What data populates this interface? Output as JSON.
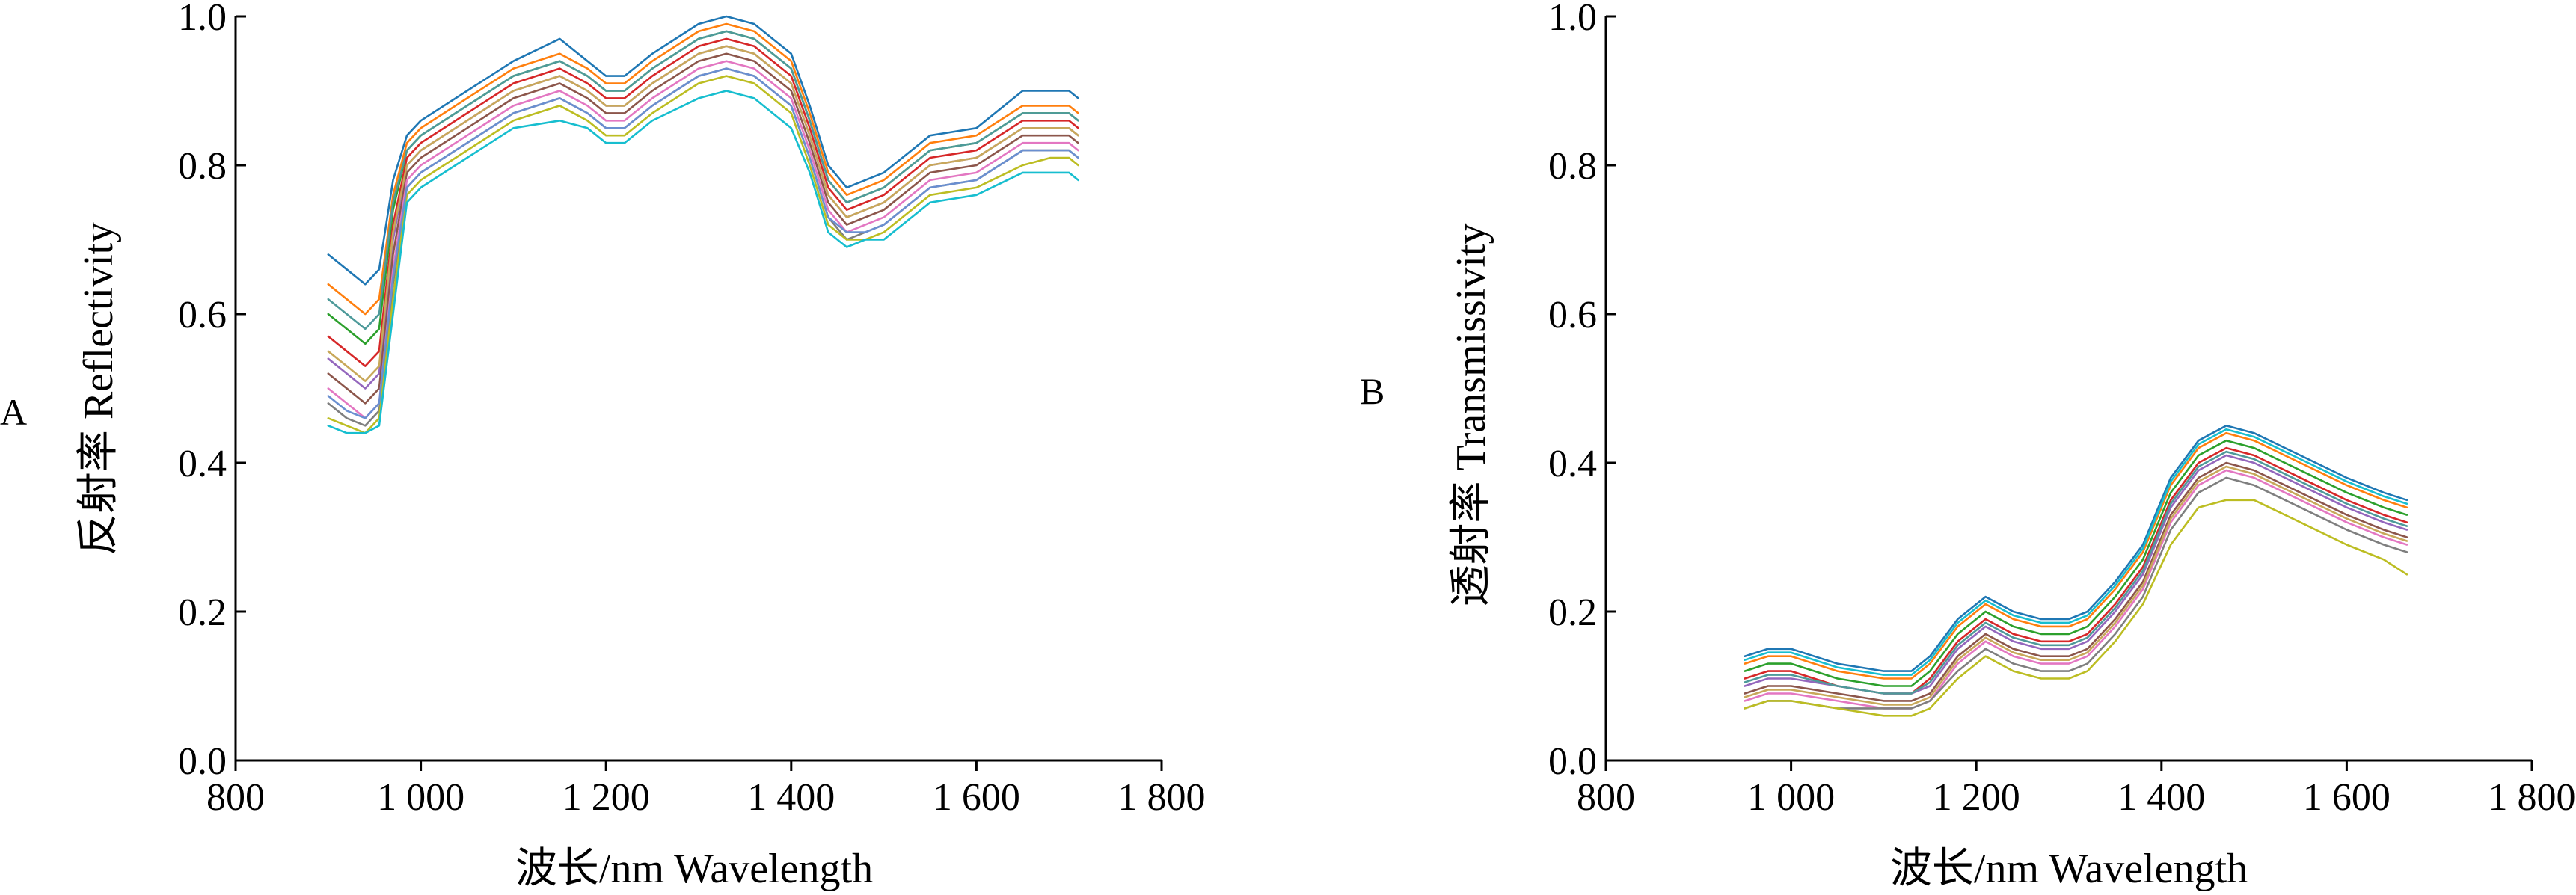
{
  "chart_data": [
    {
      "type": "line",
      "panel_label": "A",
      "xlabel": "波长/nm Wavelength",
      "ylabel": "反射率 Reflectivity",
      "xlim": [
        800,
        1800
      ],
      "ylim": [
        0.0,
        1.0
      ],
      "x_ticks": [
        800,
        1000,
        1200,
        1400,
        1600,
        1800
      ],
      "x_tick_labels": [
        "800",
        "1 000",
        "1 200",
        "1 400",
        "1 600",
        "1 800"
      ],
      "y_ticks": [
        0.0,
        0.2,
        0.4,
        0.6,
        0.8,
        1.0
      ],
      "y_tick_labels": [
        "0.0",
        "0.2",
        "0.4",
        "0.6",
        "0.8",
        "1.0"
      ],
      "grid": false,
      "legend": "none",
      "x": [
        900,
        920,
        940,
        955,
        970,
        985,
        1000,
        1050,
        1100,
        1150,
        1180,
        1200,
        1220,
        1250,
        1300,
        1330,
        1360,
        1380,
        1400,
        1420,
        1440,
        1460,
        1480,
        1500,
        1550,
        1600,
        1650,
        1680,
        1700,
        1710
      ],
      "series": [
        {
          "values": [
            0.68,
            0.66,
            0.64,
            0.66,
            0.78,
            0.84,
            0.86,
            0.9,
            0.94,
            0.97,
            0.94,
            0.92,
            0.92,
            0.95,
            0.99,
            1.0,
            0.99,
            0.97,
            0.95,
            0.88,
            0.8,
            0.77,
            0.78,
            0.79,
            0.84,
            0.85,
            0.9,
            0.9,
            0.9,
            0.89
          ]
        },
        {
          "values": [
            0.64,
            0.62,
            0.6,
            0.62,
            0.76,
            0.83,
            0.85,
            0.89,
            0.93,
            0.95,
            0.93,
            0.91,
            0.91,
            0.94,
            0.98,
            0.99,
            0.98,
            0.96,
            0.94,
            0.87,
            0.79,
            0.76,
            0.77,
            0.78,
            0.83,
            0.84,
            0.88,
            0.88,
            0.88,
            0.87
          ]
        },
        {
          "values": [
            0.6,
            0.58,
            0.56,
            0.58,
            0.74,
            0.82,
            0.84,
            0.88,
            0.92,
            0.94,
            0.92,
            0.9,
            0.9,
            0.93,
            0.97,
            0.98,
            0.97,
            0.95,
            0.93,
            0.86,
            0.78,
            0.75,
            0.76,
            0.77,
            0.82,
            0.83,
            0.87,
            0.87,
            0.87,
            0.86
          ]
        },
        {
          "values": [
            0.57,
            0.55,
            0.53,
            0.55,
            0.72,
            0.81,
            0.83,
            0.87,
            0.91,
            0.93,
            0.91,
            0.89,
            0.89,
            0.92,
            0.96,
            0.97,
            0.96,
            0.94,
            0.92,
            0.85,
            0.77,
            0.74,
            0.75,
            0.76,
            0.81,
            0.82,
            0.86,
            0.86,
            0.86,
            0.85
          ]
        },
        {
          "values": [
            0.54,
            0.52,
            0.5,
            0.52,
            0.7,
            0.8,
            0.82,
            0.86,
            0.9,
            0.92,
            0.9,
            0.88,
            0.88,
            0.91,
            0.95,
            0.96,
            0.95,
            0.93,
            0.91,
            0.84,
            0.76,
            0.73,
            0.74,
            0.75,
            0.8,
            0.81,
            0.85,
            0.85,
            0.85,
            0.84
          ]
        },
        {
          "values": [
            0.52,
            0.5,
            0.48,
            0.5,
            0.68,
            0.79,
            0.81,
            0.85,
            0.89,
            0.91,
            0.89,
            0.87,
            0.87,
            0.9,
            0.94,
            0.95,
            0.94,
            0.92,
            0.9,
            0.83,
            0.75,
            0.72,
            0.73,
            0.74,
            0.79,
            0.8,
            0.84,
            0.84,
            0.84,
            0.83
          ]
        },
        {
          "values": [
            0.5,
            0.48,
            0.46,
            0.48,
            0.66,
            0.78,
            0.8,
            0.84,
            0.88,
            0.9,
            0.88,
            0.86,
            0.86,
            0.89,
            0.93,
            0.94,
            0.93,
            0.91,
            0.89,
            0.82,
            0.74,
            0.71,
            0.72,
            0.73,
            0.78,
            0.79,
            0.83,
            0.83,
            0.83,
            0.82
          ]
        },
        {
          "values": [
            0.48,
            0.46,
            0.45,
            0.47,
            0.64,
            0.77,
            0.79,
            0.83,
            0.87,
            0.89,
            0.87,
            0.85,
            0.85,
            0.88,
            0.92,
            0.93,
            0.92,
            0.9,
            0.88,
            0.81,
            0.73,
            0.7,
            0.71,
            0.72,
            0.77,
            0.78,
            0.82,
            0.82,
            0.82,
            0.81
          ]
        },
        {
          "values": [
            0.46,
            0.45,
            0.44,
            0.46,
            0.62,
            0.76,
            0.78,
            0.82,
            0.86,
            0.88,
            0.86,
            0.84,
            0.84,
            0.87,
            0.91,
            0.92,
            0.91,
            0.89,
            0.87,
            0.8,
            0.72,
            0.7,
            0.7,
            0.71,
            0.76,
            0.77,
            0.8,
            0.81,
            0.81,
            0.8
          ]
        },
        {
          "values": [
            0.45,
            0.44,
            0.44,
            0.45,
            0.6,
            0.75,
            0.77,
            0.81,
            0.85,
            0.86,
            0.85,
            0.83,
            0.83,
            0.86,
            0.89,
            0.9,
            0.89,
            0.87,
            0.85,
            0.79,
            0.71,
            0.69,
            0.7,
            0.7,
            0.75,
            0.76,
            0.79,
            0.79,
            0.79,
            0.78
          ]
        },
        {
          "values": [
            0.62,
            0.6,
            0.58,
            0.6,
            0.75,
            0.82,
            0.84,
            0.88,
            0.92,
            0.94,
            0.92,
            0.9,
            0.9,
            0.93,
            0.97,
            0.98,
            0.97,
            0.95,
            0.93,
            0.86,
            0.78,
            0.75,
            0.76,
            0.77,
            0.82,
            0.83,
            0.87,
            0.87,
            0.87,
            0.86
          ]
        },
        {
          "values": [
            0.55,
            0.53,
            0.51,
            0.53,
            0.71,
            0.8,
            0.82,
            0.86,
            0.9,
            0.92,
            0.9,
            0.88,
            0.88,
            0.91,
            0.95,
            0.96,
            0.95,
            0.93,
            0.91,
            0.84,
            0.76,
            0.73,
            0.74,
            0.75,
            0.8,
            0.81,
            0.85,
            0.85,
            0.85,
            0.84
          ]
        },
        {
          "values": [
            0.49,
            0.47,
            0.46,
            0.48,
            0.65,
            0.77,
            0.79,
            0.83,
            0.87,
            0.89,
            0.87,
            0.85,
            0.85,
            0.88,
            0.92,
            0.93,
            0.92,
            0.9,
            0.88,
            0.81,
            0.73,
            0.71,
            0.71,
            0.72,
            0.77,
            0.78,
            0.82,
            0.82,
            0.82,
            0.81
          ]
        }
      ]
    },
    {
      "type": "line",
      "panel_label": "B",
      "xlabel": "波长/nm Wavelength",
      "ylabel": "透射率 Transmissivity",
      "xlim": [
        800,
        1800
      ],
      "ylim": [
        0.0,
        1.0
      ],
      "x_ticks": [
        800,
        1000,
        1200,
        1400,
        1600,
        1800
      ],
      "x_tick_labels": [
        "800",
        "1 000",
        "1 200",
        "1 400",
        "1 600",
        "1 800"
      ],
      "y_ticks": [
        0.0,
        0.2,
        0.4,
        0.6,
        0.8,
        1.0
      ],
      "y_tick_labels": [
        "0.0",
        "0.2",
        "0.4",
        "0.6",
        "0.8",
        "1.0"
      ],
      "grid": false,
      "legend": "none",
      "x": [
        950,
        975,
        1000,
        1050,
        1100,
        1130,
        1150,
        1180,
        1210,
        1240,
        1270,
        1300,
        1320,
        1350,
        1380,
        1410,
        1440,
        1470,
        1500,
        1550,
        1600,
        1640,
        1665
      ],
      "series": [
        {
          "values": [
            0.14,
            0.15,
            0.15,
            0.13,
            0.12,
            0.12,
            0.14,
            0.19,
            0.22,
            0.2,
            0.19,
            0.19,
            0.2,
            0.24,
            0.29,
            0.38,
            0.43,
            0.45,
            0.44,
            0.41,
            0.38,
            0.36,
            0.35
          ]
        },
        {
          "values": [
            0.13,
            0.14,
            0.14,
            0.12,
            0.11,
            0.11,
            0.13,
            0.18,
            0.21,
            0.19,
            0.18,
            0.18,
            0.19,
            0.23,
            0.28,
            0.37,
            0.42,
            0.44,
            0.43,
            0.4,
            0.37,
            0.35,
            0.34
          ]
        },
        {
          "values": [
            0.12,
            0.13,
            0.13,
            0.11,
            0.1,
            0.1,
            0.12,
            0.17,
            0.2,
            0.18,
            0.17,
            0.17,
            0.18,
            0.22,
            0.27,
            0.36,
            0.41,
            0.43,
            0.42,
            0.39,
            0.36,
            0.34,
            0.33
          ]
        },
        {
          "values": [
            0.11,
            0.12,
            0.12,
            0.1,
            0.09,
            0.09,
            0.11,
            0.16,
            0.19,
            0.17,
            0.16,
            0.16,
            0.17,
            0.21,
            0.26,
            0.35,
            0.4,
            0.42,
            0.41,
            0.38,
            0.35,
            0.33,
            0.32
          ]
        },
        {
          "values": [
            0.1,
            0.11,
            0.11,
            0.1,
            0.09,
            0.09,
            0.1,
            0.15,
            0.18,
            0.16,
            0.15,
            0.15,
            0.16,
            0.2,
            0.25,
            0.34,
            0.39,
            0.41,
            0.4,
            0.37,
            0.34,
            0.32,
            0.31
          ]
        },
        {
          "values": [
            0.09,
            0.1,
            0.1,
            0.09,
            0.08,
            0.08,
            0.09,
            0.14,
            0.17,
            0.15,
            0.14,
            0.14,
            0.15,
            0.19,
            0.24,
            0.33,
            0.38,
            0.4,
            0.39,
            0.36,
            0.33,
            0.31,
            0.3
          ]
        },
        {
          "values": [
            0.08,
            0.09,
            0.09,
            0.08,
            0.07,
            0.07,
            0.08,
            0.13,
            0.16,
            0.14,
            0.13,
            0.13,
            0.14,
            0.18,
            0.23,
            0.32,
            0.37,
            0.39,
            0.38,
            0.35,
            0.32,
            0.3,
            0.29
          ]
        },
        {
          "values": [
            0.07,
            0.08,
            0.08,
            0.07,
            0.07,
            0.07,
            0.08,
            0.12,
            0.15,
            0.13,
            0.12,
            0.12,
            0.13,
            0.17,
            0.22,
            0.31,
            0.36,
            0.38,
            0.37,
            0.34,
            0.31,
            0.29,
            0.28
          ]
        },
        {
          "values": [
            0.07,
            0.08,
            0.08,
            0.07,
            0.06,
            0.06,
            0.07,
            0.11,
            0.14,
            0.12,
            0.11,
            0.11,
            0.12,
            0.16,
            0.21,
            0.29,
            0.34,
            0.35,
            0.35,
            0.32,
            0.29,
            0.27,
            0.25
          ]
        },
        {
          "values": [
            0.135,
            0.145,
            0.145,
            0.125,
            0.115,
            0.115,
            0.135,
            0.185,
            0.215,
            0.195,
            0.185,
            0.185,
            0.195,
            0.235,
            0.285,
            0.375,
            0.425,
            0.445,
            0.435,
            0.405,
            0.375,
            0.355,
            0.345
          ]
        },
        {
          "values": [
            0.105,
            0.115,
            0.115,
            0.1,
            0.09,
            0.09,
            0.105,
            0.155,
            0.185,
            0.165,
            0.155,
            0.155,
            0.165,
            0.205,
            0.255,
            0.345,
            0.395,
            0.415,
            0.405,
            0.375,
            0.345,
            0.325,
            0.315
          ]
        },
        {
          "values": [
            0.085,
            0.095,
            0.095,
            0.085,
            0.075,
            0.075,
            0.085,
            0.135,
            0.165,
            0.145,
            0.135,
            0.135,
            0.145,
            0.185,
            0.235,
            0.325,
            0.375,
            0.395,
            0.385,
            0.355,
            0.325,
            0.305,
            0.295
          ]
        }
      ]
    }
  ],
  "colors": [
    "#1f77b4",
    "#ff7f0e",
    "#2ca02c",
    "#d62728",
    "#9467bd",
    "#8c564b",
    "#e377c2",
    "#7f7f7f",
    "#bcbd22",
    "#17becf",
    "#4e9a9a",
    "#c8a85a",
    "#6a8fd0"
  ]
}
